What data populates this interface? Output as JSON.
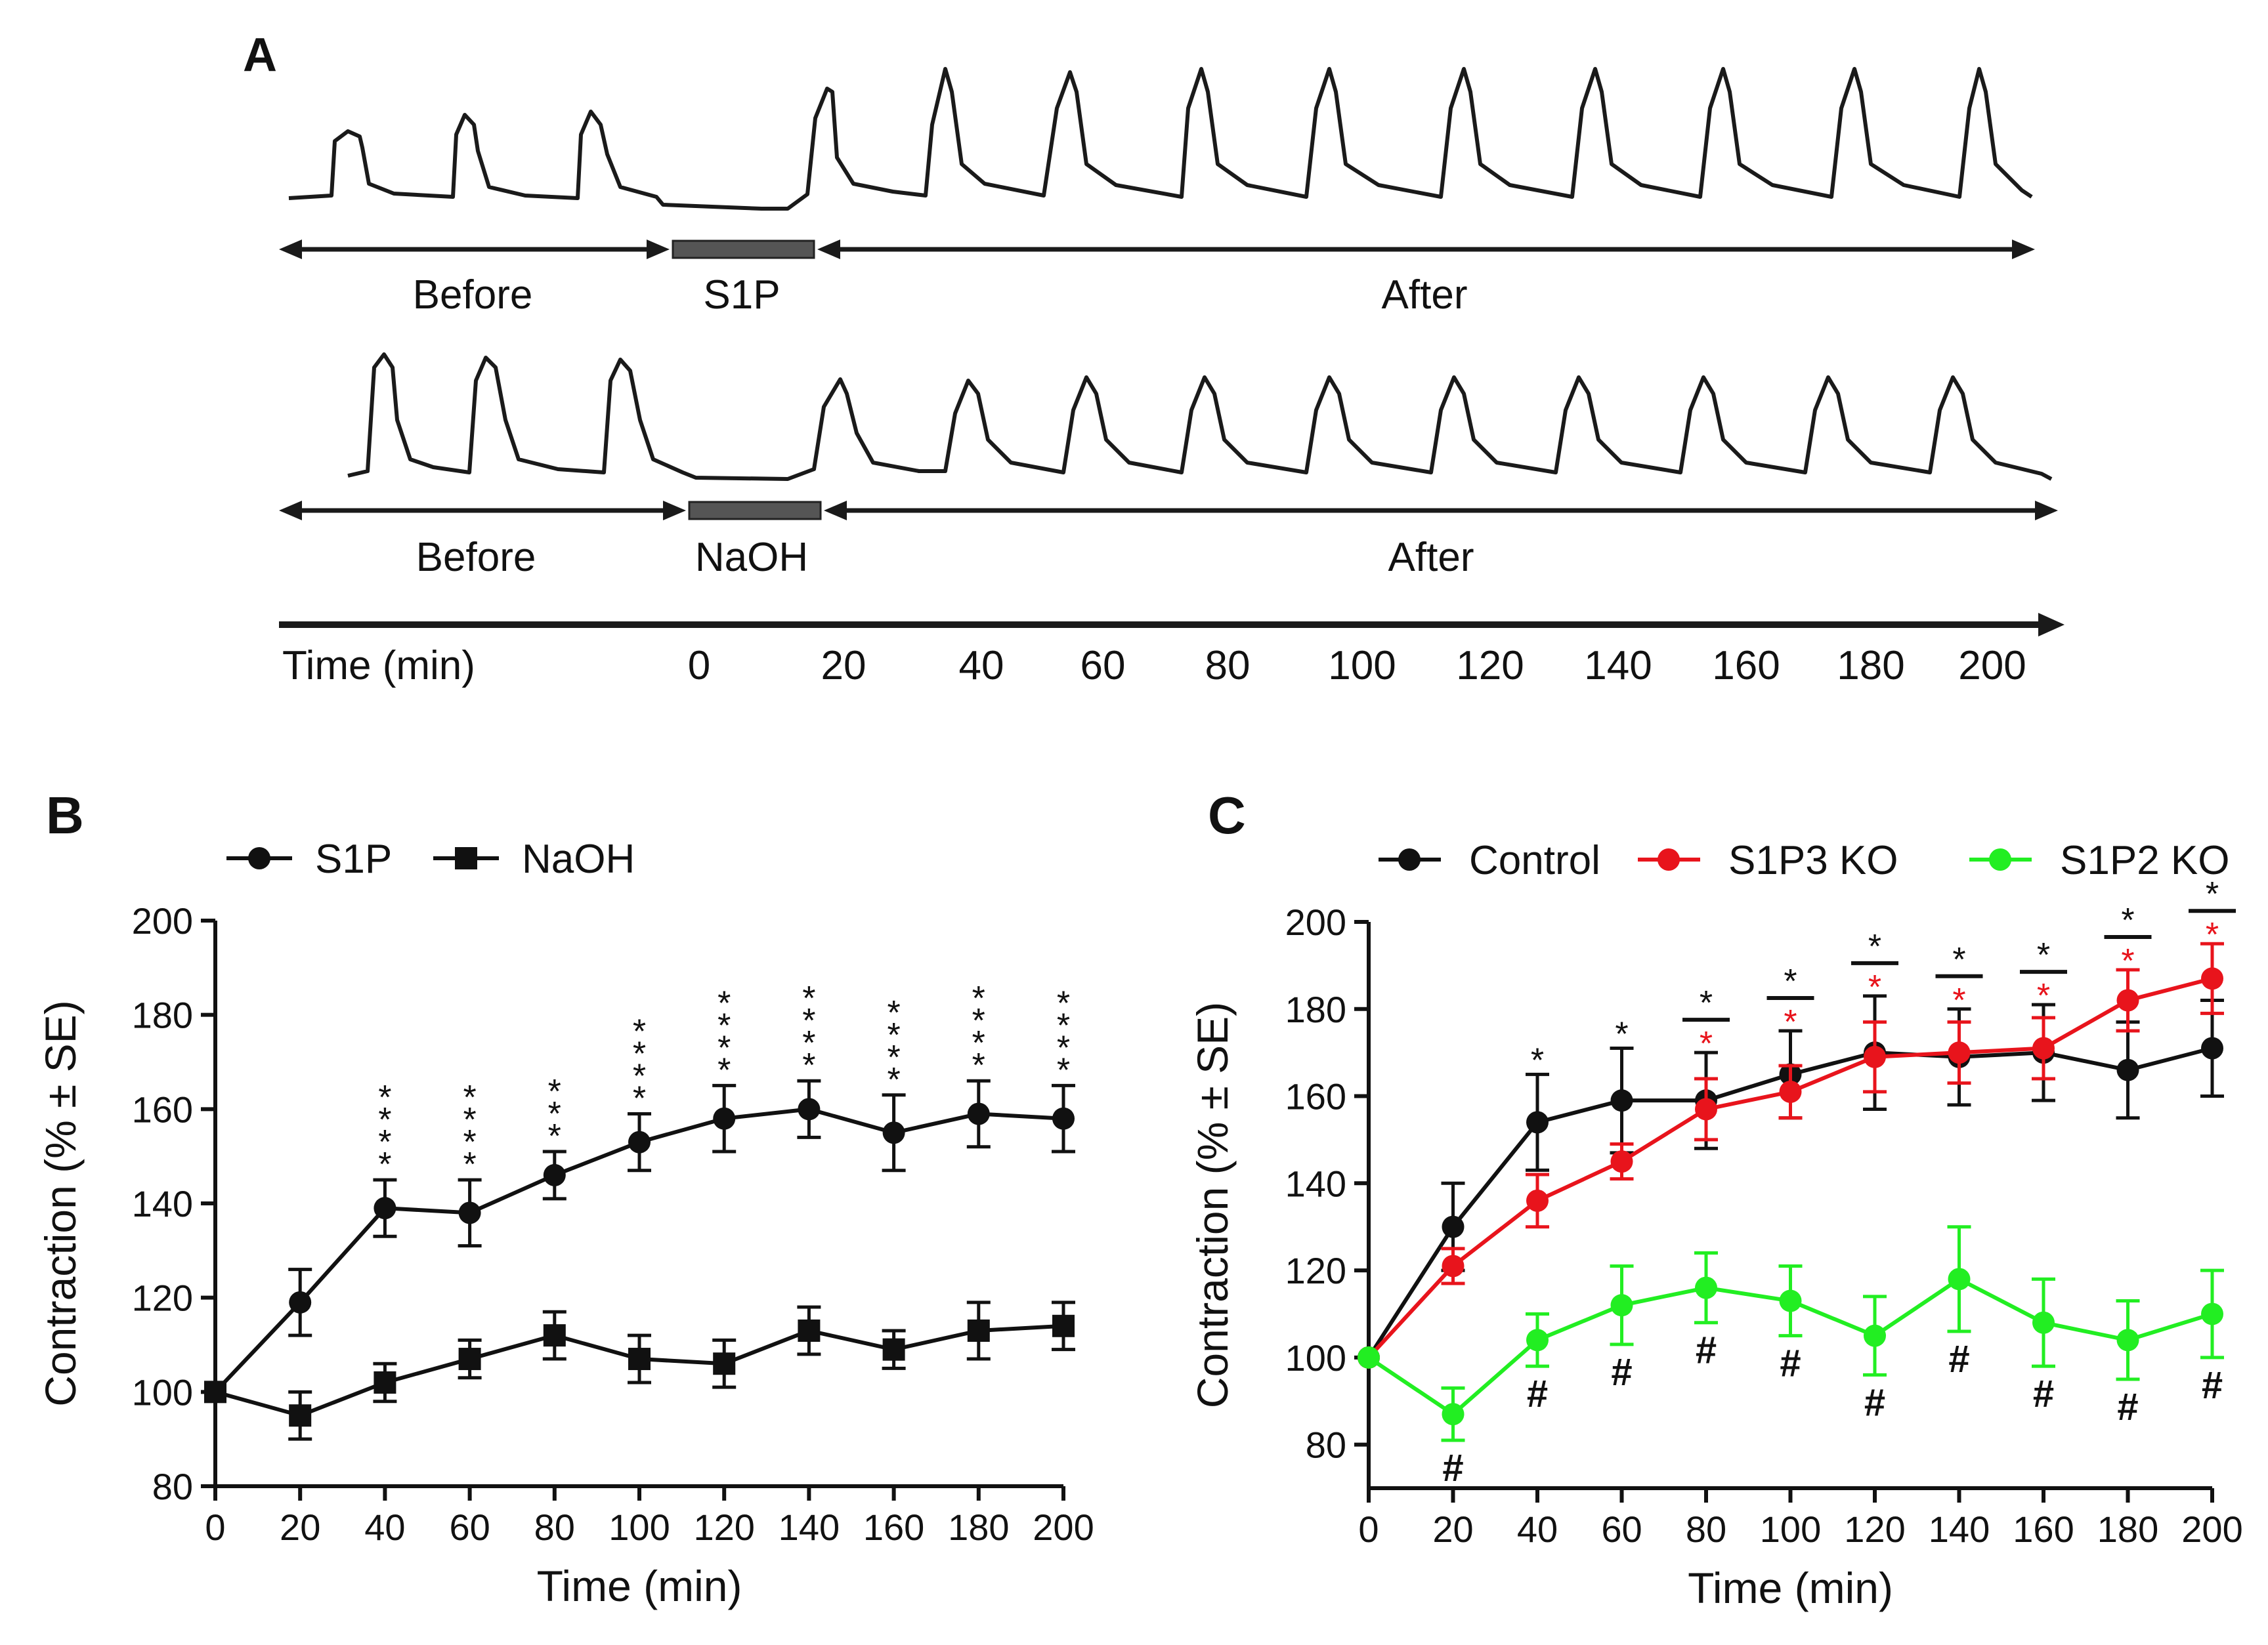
{
  "panel_a": {
    "label": "A",
    "row1": {
      "before": "Before",
      "treatment": "S1P",
      "after": "After"
    },
    "row2": {
      "before": "Before",
      "treatment": "NaOH",
      "after": "After"
    },
    "time_axis": {
      "label": "Time (min)",
      "ticks": [
        "0",
        "20",
        "40",
        "60",
        "80",
        "100",
        "120",
        "140",
        "160",
        "180",
        "200"
      ]
    }
  },
  "chart_data": [
    {
      "panel": "B",
      "type": "line",
      "xlabel": "Time (min)",
      "ylabel": "Contraction (% ± SE)",
      "xlim": [
        0,
        200
      ],
      "ylim": [
        80,
        200
      ],
      "x": [
        0,
        20,
        40,
        60,
        80,
        100,
        120,
        140,
        160,
        180,
        200
      ],
      "xticks": [
        0,
        20,
        40,
        60,
        80,
        100,
        120,
        140,
        160,
        180,
        200
      ],
      "yticks": [
        80,
        100,
        120,
        140,
        160,
        180,
        200
      ],
      "legend": "top-left",
      "series": [
        {
          "name": "S1P",
          "marker": "circle",
          "color": "#111111",
          "values": [
            100,
            119,
            139,
            138,
            146,
            153,
            158,
            160,
            155,
            159,
            158
          ],
          "errors": [
            0,
            7,
            6,
            7,
            5,
            6,
            7,
            6,
            8,
            7,
            7
          ]
        },
        {
          "name": "NaOH",
          "marker": "square",
          "color": "#111111",
          "values": [
            100,
            95,
            102,
            107,
            112,
            107,
            106,
            113,
            109,
            113,
            114
          ],
          "errors": [
            0,
            5,
            4,
            4,
            5,
            5,
            5,
            5,
            4,
            6,
            5
          ]
        }
      ],
      "annotations": {
        "symbol": "*",
        "color": "#111111",
        "x": [
          40,
          60,
          80,
          100,
          120,
          140,
          160,
          180,
          200
        ],
        "counts": [
          4,
          4,
          3,
          4,
          4,
          4,
          4,
          4,
          4
        ]
      }
    },
    {
      "panel": "C",
      "type": "line",
      "xlabel": "Time (min)",
      "ylabel": "Contraction (% ± SE)",
      "xlim": [
        0,
        200
      ],
      "ylim": [
        70,
        200
      ],
      "x": [
        0,
        20,
        40,
        60,
        80,
        100,
        120,
        140,
        160,
        180,
        200
      ],
      "xticks": [
        0,
        20,
        40,
        60,
        80,
        100,
        120,
        140,
        160,
        180,
        200
      ],
      "yticks": [
        80,
        100,
        120,
        140,
        160,
        180,
        200
      ],
      "legend": "top",
      "series": [
        {
          "name": "Control",
          "marker": "circle",
          "color": "#111111",
          "values": [
            100,
            130,
            154,
            159,
            159,
            165,
            170,
            169,
            170,
            166,
            171
          ],
          "errors": [
            0,
            10,
            11,
            12,
            11,
            10,
            13,
            11,
            11,
            11,
            11
          ]
        },
        {
          "name": "S1P3 KO",
          "marker": "circle",
          "color": "#e8141c",
          "values": [
            100,
            121,
            136,
            145,
            157,
            161,
            169,
            170,
            171,
            182,
            187
          ],
          "errors": [
            0,
            4,
            6,
            4,
            7,
            6,
            8,
            7,
            7,
            7,
            8
          ]
        },
        {
          "name": "S1P2 KO",
          "marker": "circle",
          "color": "#22ee22",
          "values": [
            100,
            87,
            104,
            112,
            116,
            113,
            105,
            118,
            108,
            104,
            110
          ],
          "errors": [
            0,
            6,
            6,
            9,
            8,
            8,
            9,
            12,
            10,
            9,
            10
          ]
        }
      ],
      "annotations": {
        "black_star_x": [
          40,
          60,
          80,
          100,
          120,
          140,
          160,
          180,
          200
        ],
        "red_star_x": [
          80,
          100,
          120,
          140,
          160,
          180,
          200
        ],
        "bar_x": [
          80,
          100,
          120,
          140,
          160,
          180,
          200
        ],
        "hash_symbol": "#",
        "hash_x": [
          20,
          40,
          60,
          80,
          100,
          120,
          140,
          160,
          180,
          200
        ]
      }
    }
  ]
}
